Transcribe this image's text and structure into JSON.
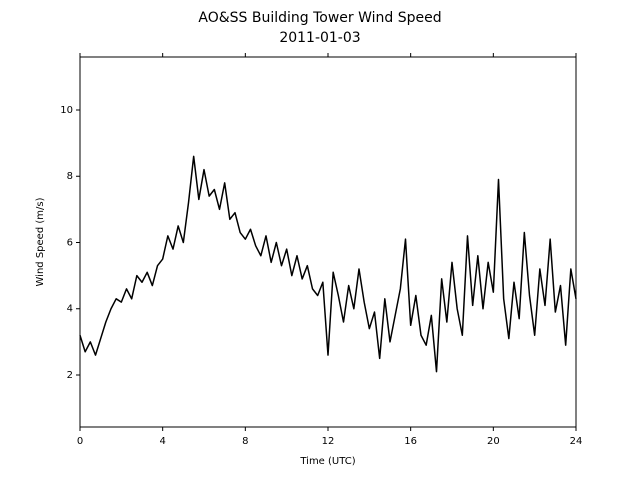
{
  "chart_data": {
    "type": "line",
    "title": "AO&SS Building Tower Wind Speed",
    "subtitle": "2011-01-03",
    "x_label": "Time (UTC)",
    "y_label": "Wind Speed (m/s)",
    "xlim": [
      0,
      24
    ],
    "xticks": [
      0,
      4,
      8,
      12,
      16,
      20,
      24
    ],
    "ylim": [
      0.43,
      11.6
    ],
    "yticks": [
      2,
      4,
      6,
      8,
      10
    ],
    "x": [
      0,
      0.25,
      0.5,
      0.75,
      1,
      1.25,
      1.5,
      1.75,
      2,
      2.25,
      2.5,
      2.75,
      3,
      3.25,
      3.5,
      3.75,
      4,
      4.25,
      4.5,
      4.75,
      5,
      5.25,
      5.5,
      5.75,
      6,
      6.25,
      6.5,
      6.75,
      7,
      7.25,
      7.5,
      7.75,
      8,
      8.25,
      8.5,
      8.75,
      9,
      9.25,
      9.5,
      9.75,
      10,
      10.25,
      10.5,
      10.75,
      11,
      11.25,
      11.5,
      11.75,
      12,
      12.25,
      12.5,
      12.75,
      13,
      13.25,
      13.5,
      13.75,
      14,
      14.25,
      14.5,
      14.75,
      15,
      15.25,
      15.5,
      15.75,
      16,
      16.25,
      16.5,
      16.75,
      17,
      17.25,
      17.5,
      17.75,
      18,
      18.25,
      18.5,
      18.75,
      19,
      19.25,
      19.5,
      19.75,
      20,
      20.25,
      20.5,
      20.75,
      21,
      21.25,
      21.5,
      21.75,
      22,
      22.25,
      22.5,
      22.75,
      23,
      23.25,
      23.5,
      23.75,
      24
    ],
    "series": [
      {
        "name": "Wind Speed",
        "color": "#000000",
        "values": [
          3.2,
          2.7,
          3.0,
          2.6,
          3.1,
          3.6,
          4.0,
          4.3,
          4.2,
          4.6,
          4.3,
          5.0,
          4.8,
          5.1,
          4.7,
          5.3,
          5.5,
          6.2,
          5.8,
          6.5,
          6.0,
          7.2,
          8.6,
          7.3,
          8.2,
          7.4,
          7.6,
          7.0,
          7.8,
          6.7,
          6.9,
          6.3,
          6.1,
          6.4,
          5.9,
          5.6,
          6.2,
          5.4,
          6.0,
          5.3,
          5.8,
          5.0,
          5.6,
          4.9,
          5.3,
          4.6,
          4.4,
          4.8,
          2.6,
          5.1,
          4.4,
          3.6,
          4.7,
          4.0,
          5.2,
          4.2,
          3.4,
          3.9,
          2.5,
          4.3,
          3.0,
          3.8,
          4.6,
          6.1,
          3.5,
          4.4,
          3.2,
          2.9,
          3.8,
          2.1,
          4.9,
          3.6,
          5.4,
          4.0,
          3.2,
          6.2,
          4.1,
          5.6,
          4.0,
          5.4,
          4.5,
          7.9,
          4.3,
          3.1,
          4.8,
          3.7,
          6.3,
          4.4,
          3.2,
          5.2,
          4.1,
          6.1,
          3.9,
          4.7,
          2.9,
          5.2,
          4.3
        ]
      }
    ]
  }
}
